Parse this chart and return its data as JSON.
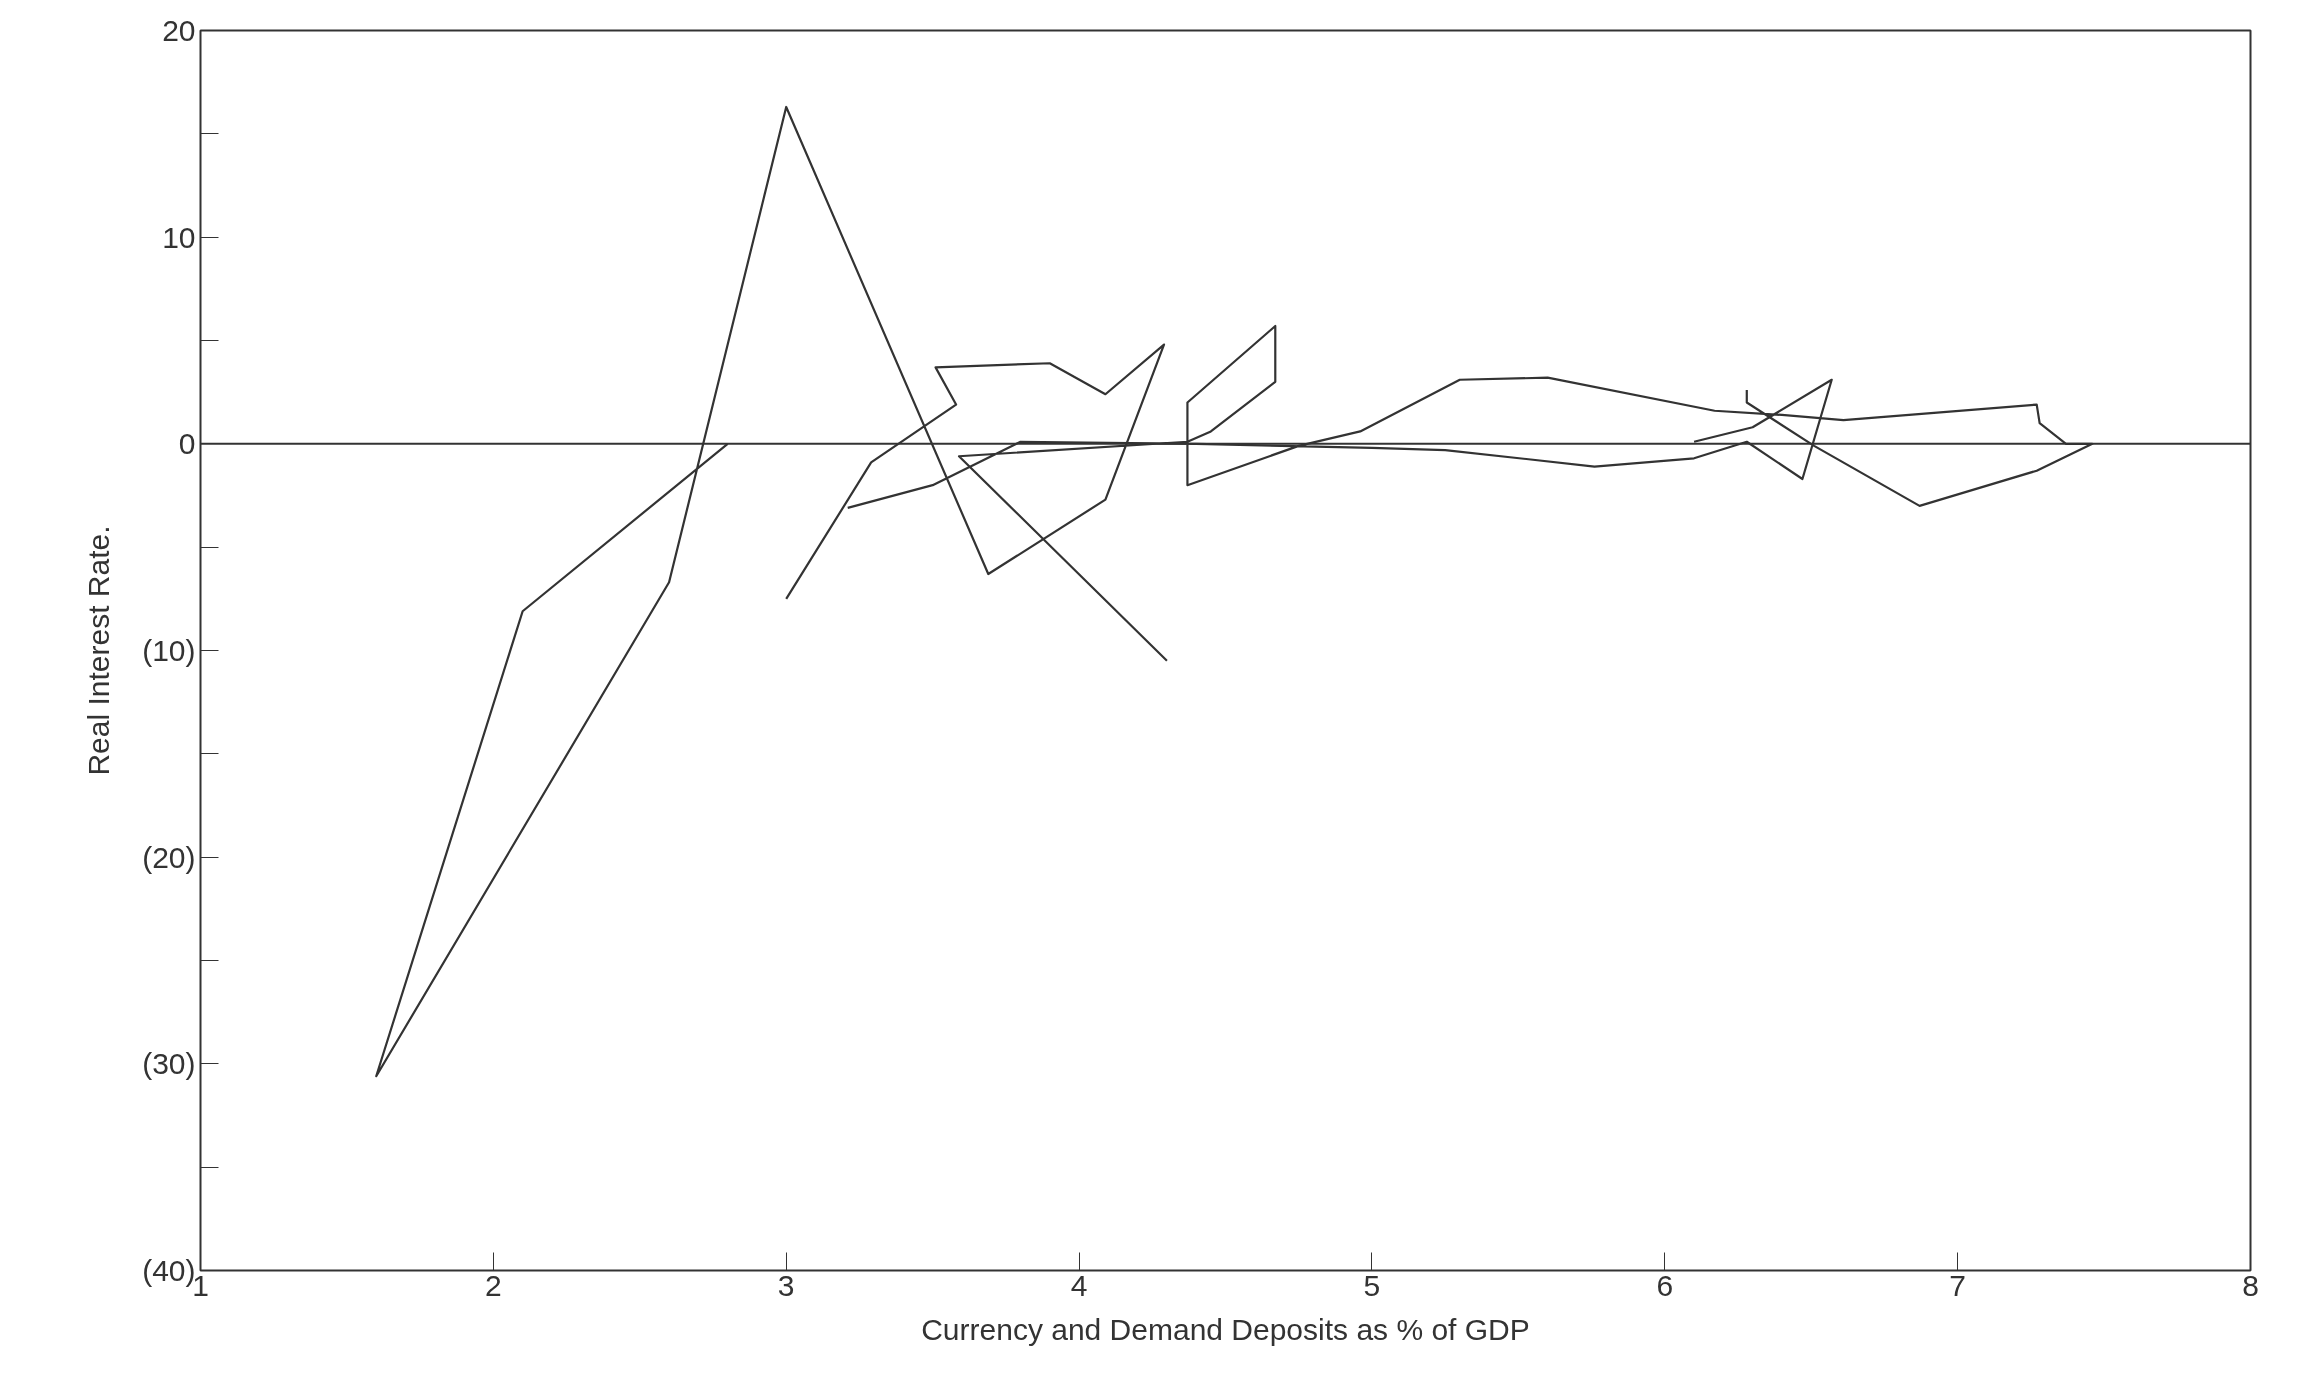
{
  "chart_data": {
    "type": "line",
    "xlabel": "Currency and Demand Deposits as % of GDP",
    "ylabel": "Real Interest Rate.",
    "series": [
      {
        "color": "#333333",
        "x": [
          6.28,
          6.28,
          6.51,
          6.87,
          7.27,
          7.46,
          7.37,
          7.28,
          7.27,
          6.61,
          6.4,
          6.17,
          5.6,
          5.3,
          4.96,
          4.75,
          4.37,
          4.37,
          4.67,
          4.67,
          4.45,
          4.37,
          3.59,
          4.3,
          null,
          2.8,
          2.1,
          1.6,
          2.6,
          3.0,
          3.69,
          4.09,
          4.29,
          4.09,
          3.9,
          3.51,
          3.58,
          3.29,
          3.0,
          null,
          3.21,
          3.5,
          3.8,
          4.4,
          5.0,
          5.25,
          5.76,
          6.1,
          6.28,
          6.47,
          6.57,
          6.3,
          6.1
        ],
        "values": [
          2.6,
          2.0,
          -0.1,
          -3.0,
          -1.3,
          0,
          0,
          1.0,
          1.9,
          1.15,
          1.4,
          1.6,
          3.2,
          3.1,
          0.6,
          -0.1,
          -2.0,
          2.0,
          5.7,
          3.0,
          0.6,
          0.1,
          -0.6,
          -10.5,
          null,
          0,
          -8.1,
          -30.6,
          -6.7,
          16.3,
          -6.3,
          -2.7,
          4.8,
          2.4,
          3.9,
          3.7,
          1.9,
          -0.9,
          -7.5,
          null,
          -3.1,
          -2.0,
          0.1,
          0,
          -0.2,
          -0.3,
          -1.1,
          -0.7,
          0.1,
          -1.7,
          3.1,
          0.8,
          0.1
        ]
      }
    ],
    "xlim": [
      1,
      8
    ],
    "xticks": [
      1,
      2,
      3,
      4,
      5,
      6,
      7,
      8
    ],
    "ylim": [
      -40,
      20
    ],
    "yticks": [
      {
        "value": -40,
        "label": "(40)"
      },
      {
        "value": -30,
        "label": "(30)"
      },
      {
        "value": -20,
        "label": "(20)"
      },
      {
        "value": -10,
        "label": "(10)"
      },
      0,
      10,
      20
    ],
    "ref_lines": [
      {
        "axis": "y",
        "value": 0,
        "color": "#333333"
      }
    ],
    "grid": false
  }
}
